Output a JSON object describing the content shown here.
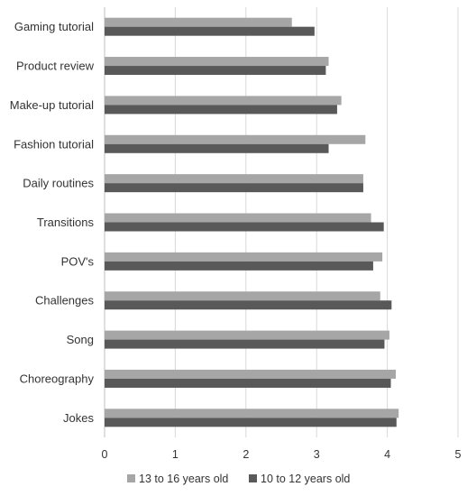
{
  "chart_data": {
    "type": "bar",
    "orientation": "horizontal",
    "title": "",
    "xlabel": "",
    "ylabel": "",
    "categories": [
      "Gaming tutorial",
      "Product review",
      "Make-up tutorial",
      "Fashion tutorial",
      "Daily routines",
      "Transitions",
      "POV's",
      "Challenges",
      "Song",
      "Choreography",
      "Jokes"
    ],
    "series": [
      {
        "name": "13 to 16 years old",
        "color": "#a6a6a6",
        "values": [
          2.65,
          3.17,
          3.35,
          3.69,
          3.66,
          3.77,
          3.93,
          3.9,
          4.03,
          4.12,
          4.16
        ]
      },
      {
        "name": "10 to 12 years old",
        "color": "#595959",
        "values": [
          2.97,
          3.13,
          3.29,
          3.17,
          3.66,
          3.95,
          3.8,
          4.06,
          3.96,
          4.05,
          4.13
        ]
      }
    ],
    "xlim": [
      0,
      5
    ],
    "xticks": [
      "0",
      "1",
      "2",
      "3",
      "4",
      "5"
    ],
    "grid": true,
    "legend_position": "bottom"
  }
}
